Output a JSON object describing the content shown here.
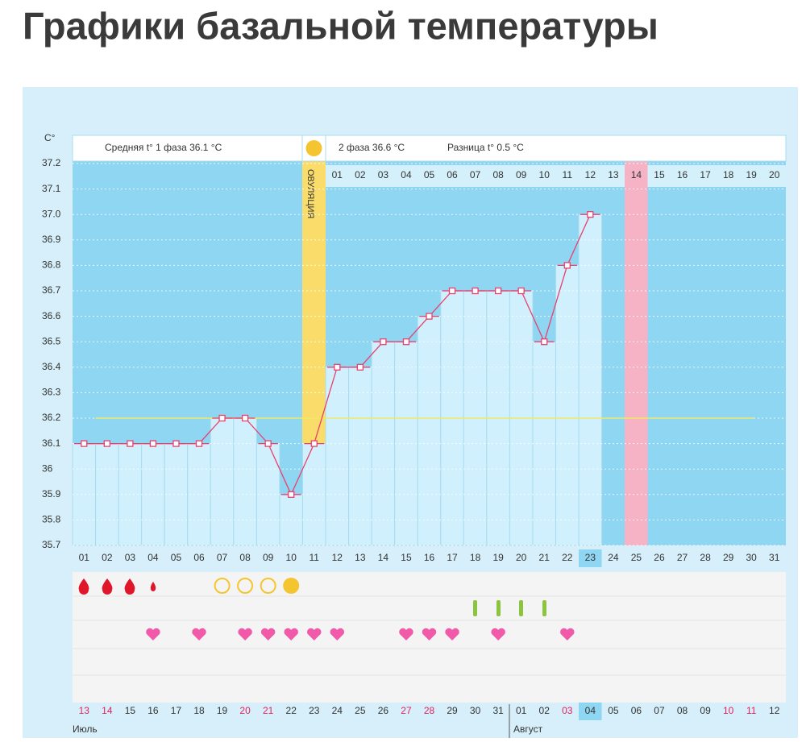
{
  "chart_data": {
    "type": "line",
    "title": "Графики базальной температуры",
    "y_label": "C°",
    "header": {
      "phase1": "Средняя t° 1 фаза 36.1 °C",
      "phase2": "2 фаза 36.6 °C",
      "difference": "Разница t° 0.5 °C"
    },
    "ovulation_label": "ОВУЛЯЦИЯ",
    "categories": [
      "01",
      "02",
      "03",
      "04",
      "05",
      "06",
      "07",
      "08",
      "09",
      "10",
      "11",
      "12",
      "13",
      "14",
      "15",
      "16",
      "17",
      "18",
      "19",
      "20",
      "21",
      "22",
      "23",
      "24",
      "25",
      "26",
      "27",
      "28",
      "29",
      "30",
      "31"
    ],
    "values": [
      36.1,
      36.1,
      36.1,
      36.1,
      36.1,
      36.1,
      36.2,
      36.2,
      36.1,
      35.9,
      36.1,
      36.4,
      36.4,
      36.5,
      36.5,
      36.6,
      36.7,
      36.7,
      36.7,
      36.7,
      36.5,
      36.8,
      37.0,
      null,
      null,
      null,
      null,
      null,
      null,
      null,
      null
    ],
    "color": "#e8416e",
    "coverline": 36.2,
    "coverline_color": "#f0e868",
    "ylim": [
      35.7,
      37.2
    ],
    "yticks": [
      35.7,
      35.8,
      35.9,
      36.0,
      36.1,
      36.2,
      36.3,
      36.4,
      36.5,
      36.6,
      36.7,
      36.8,
      36.9,
      {
        "value": 37.0,
        "label": "37.0"
      },
      37.1,
      37.2
    ],
    "grid": true,
    "cycle_days": [
      "01",
      "02",
      "03",
      "04",
      "05",
      "06",
      "07",
      "08",
      "09",
      "10",
      "11",
      "12",
      "13",
      "14",
      "15",
      "16",
      "17",
      "18",
      "19",
      "20"
    ],
    "dates": [
      {
        "label": "13",
        "color": "#e0245e"
      },
      {
        "label": "14",
        "color": "#e0245e"
      },
      {
        "label": "15",
        "color": "#333"
      },
      {
        "label": "16",
        "color": "#333"
      },
      {
        "label": "17",
        "color": "#333"
      },
      {
        "label": "18",
        "color": "#333"
      },
      {
        "label": "19",
        "color": "#333"
      },
      {
        "label": "20",
        "color": "#e0245e"
      },
      {
        "label": "21",
        "color": "#e0245e"
      },
      {
        "label": "22",
        "color": "#333"
      },
      {
        "label": "23",
        "color": "#333"
      },
      {
        "label": "24",
        "color": "#333"
      },
      {
        "label": "25",
        "color": "#333"
      },
      {
        "label": "26",
        "color": "#333"
      },
      {
        "label": "27",
        "color": "#e0245e"
      },
      {
        "label": "28",
        "color": "#e0245e"
      },
      {
        "label": "29",
        "color": "#333"
      },
      {
        "label": "30",
        "color": "#333"
      },
      {
        "label": "31",
        "color": "#333"
      },
      {
        "label": "01",
        "color": "#333"
      },
      {
        "label": "02",
        "color": "#333"
      },
      {
        "label": "03",
        "color": "#e0245e"
      },
      {
        "label": "04",
        "color": "#333"
      },
      {
        "label": "05",
        "color": "#333"
      },
      {
        "label": "06",
        "color": "#333"
      },
      {
        "label": "07",
        "color": "#333"
      },
      {
        "label": "08",
        "color": "#333"
      },
      {
        "label": "09",
        "color": "#333"
      },
      {
        "label": "10",
        "color": "#e0245e"
      },
      {
        "label": "11",
        "color": "#e0245e"
      },
      {
        "label": "12",
        "color": "#333"
      }
    ],
    "months": [
      "Июль",
      "Август"
    ]
  }
}
